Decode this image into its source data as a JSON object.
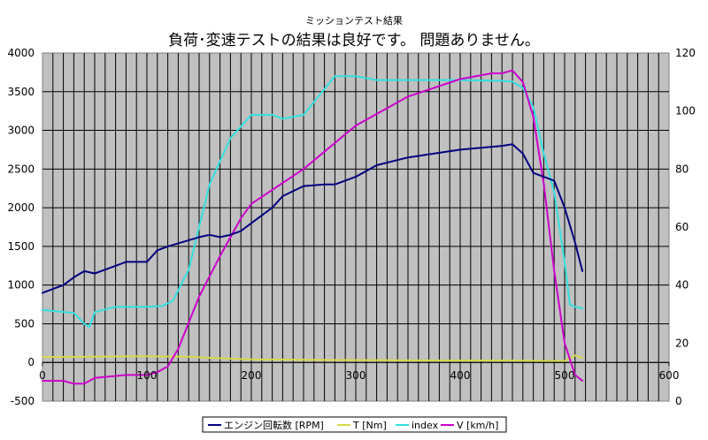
{
  "chart_data": {
    "type": "line",
    "title": "ミッションテスト結果",
    "subtitle": "負荷･変速テストの結果は良好です。 問題ありません。",
    "xlim": [
      0,
      600
    ],
    "x_ticks": [
      "0",
      "100",
      "200",
      "300",
      "400",
      "500",
      "600"
    ],
    "ylim_left": [
      -500,
      4000
    ],
    "y_left_ticks": [
      "-500",
      "0",
      "500",
      "1000",
      "1500",
      "2000",
      "2500",
      "3000",
      "3500",
      "4000"
    ],
    "ylim_right": [
      0,
      120
    ],
    "y_right_ticks": [
      "0",
      "20",
      "40",
      "60",
      "80",
      "100",
      "120"
    ],
    "grid": true,
    "legend_position": "bottom",
    "series": [
      {
        "name": "エンジン回転数 [RPM]",
        "axis": "left",
        "color": "#000080",
        "x": [
          0,
          20,
          30,
          40,
          50,
          60,
          80,
          100,
          110,
          120,
          140,
          150,
          160,
          170,
          180,
          190,
          200,
          220,
          230,
          250,
          270,
          280,
          300,
          320,
          350,
          400,
          440,
          450,
          460,
          470,
          480,
          490,
          500,
          510,
          517
        ],
        "y": [
          900,
          1000,
          1100,
          1180,
          1150,
          1200,
          1300,
          1300,
          1450,
          1500,
          1580,
          1620,
          1650,
          1620,
          1650,
          1700,
          1800,
          2000,
          2150,
          2280,
          2300,
          2300,
          2400,
          2550,
          2650,
          2750,
          2800,
          2820,
          2700,
          2450,
          2400,
          2350,
          2000,
          1550,
          1180
        ]
      },
      {
        "name": "T [Nm]",
        "axis": "left",
        "color": "#D8D848",
        "x": [
          0,
          50,
          100,
          140,
          160,
          200,
          300,
          400,
          450,
          480,
          500,
          510,
          517
        ],
        "y": [
          70,
          75,
          80,
          75,
          60,
          40,
          30,
          25,
          25,
          20,
          20,
          90,
          60
        ]
      },
      {
        "name": "index",
        "axis": "left",
        "color": "#33E0E0",
        "x": [
          0,
          30,
          40,
          45,
          50,
          70,
          100,
          115,
          125,
          140,
          160,
          180,
          200,
          220,
          230,
          250,
          280,
          300,
          320,
          400,
          440,
          450,
          460,
          470,
          480,
          490,
          500,
          505,
          510,
          517
        ],
        "y": [
          680,
          640,
          500,
          460,
          650,
          720,
          720,
          730,
          800,
          1200,
          2300,
          2900,
          3200,
          3200,
          3150,
          3200,
          3700,
          3700,
          3650,
          3650,
          3640,
          3630,
          3550,
          3300,
          2700,
          2200,
          1300,
          750,
          720,
          700
        ]
      },
      {
        "name": "V [km/h]",
        "axis": "right",
        "color": "#CC00CC",
        "x": [
          0,
          20,
          30,
          40,
          50,
          80,
          100,
          110,
          120,
          130,
          150,
          170,
          190,
          200,
          250,
          300,
          350,
          400,
          430,
          440,
          450,
          460,
          470,
          480,
          490,
          500,
          510,
          517
        ],
        "y": [
          7,
          7,
          6,
          6,
          8,
          9,
          9,
          10,
          12,
          18,
          36,
          50,
          63,
          68,
          80,
          95,
          105,
          111,
          113,
          113,
          114,
          110,
          98,
          75,
          45,
          20,
          9,
          7
        ]
      }
    ]
  }
}
